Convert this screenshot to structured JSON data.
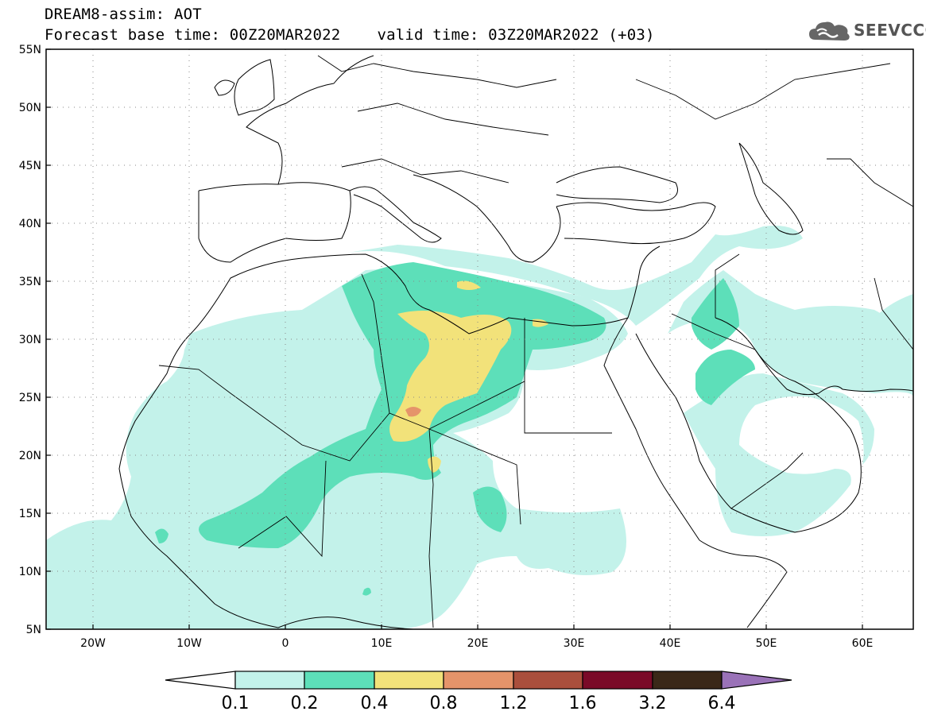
{
  "header": {
    "title": "DREAM8-assim: AOT",
    "base_time": "Forecast base time: 00Z20MAR2022",
    "valid_time": "valid time: 03Z20MAR2022 (+03)"
  },
  "logo": {
    "text": "SEEVCCC",
    "icon": "cloud-icon"
  },
  "map": {
    "lon_range": [
      -25,
      65
    ],
    "lat_range": [
      5,
      55
    ],
    "lon_ticks": [
      "20W",
      "10W",
      "0",
      "10E",
      "20E",
      "30E",
      "40E",
      "50E",
      "60E"
    ],
    "lat_ticks": [
      "55N",
      "50N",
      "45N",
      "40N",
      "35N",
      "30N",
      "25N",
      "20N",
      "15N",
      "10N",
      "5N"
    ],
    "gridlines": "dotted",
    "field": "Aerosol Optical Thickness"
  },
  "colorbar": {
    "labels": [
      "0.1",
      "0.2",
      "0.4",
      "0.8",
      "1.2",
      "1.6",
      "3.2",
      "6.4"
    ],
    "colors": [
      "#ffffff",
      "#c3f2ea",
      "#5ddfb9",
      "#f2e27a",
      "#e5946a",
      "#aa4f3c",
      "#7a0a28",
      "#3a2818",
      "#9a72b8"
    ]
  },
  "colors": {
    "level_0_1": "#c3f2ea",
    "level_0_2": "#5ddfb9",
    "level_0_4": "#f2e27a",
    "level_0_8": "#e5946a",
    "coast": "#000000"
  }
}
